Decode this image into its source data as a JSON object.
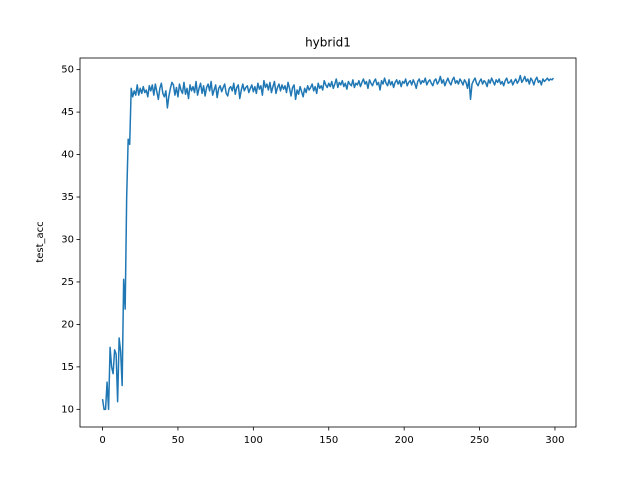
{
  "chart_data": {
    "type": "line",
    "title": "hybrid1",
    "y_label": "test_acc",
    "x": [
      0,
      1,
      2,
      3,
      4,
      5,
      6,
      7,
      8,
      9,
      10,
      11,
      12,
      13,
      14,
      15,
      16,
      17,
      18,
      19,
      20,
      21,
      22,
      23,
      24,
      25,
      26,
      27,
      28,
      29,
      30,
      31,
      32,
      33,
      34,
      35,
      36,
      37,
      38,
      39,
      40,
      41,
      42,
      43,
      44,
      45,
      46,
      47,
      48,
      49,
      50,
      51,
      52,
      53,
      54,
      55,
      56,
      57,
      58,
      59,
      60,
      61,
      62,
      63,
      64,
      65,
      66,
      67,
      68,
      69,
      70,
      71,
      72,
      73,
      74,
      75,
      76,
      77,
      78,
      79,
      80,
      81,
      82,
      83,
      84,
      85,
      86,
      87,
      88,
      89,
      90,
      91,
      92,
      93,
      94,
      95,
      96,
      97,
      98,
      99,
      100,
      101,
      102,
      103,
      104,
      105,
      106,
      107,
      108,
      109,
      110,
      111,
      112,
      113,
      114,
      115,
      116,
      117,
      118,
      119,
      120,
      121,
      122,
      123,
      124,
      125,
      126,
      127,
      128,
      129,
      130,
      131,
      132,
      133,
      134,
      135,
      136,
      137,
      138,
      139,
      140,
      141,
      142,
      143,
      144,
      145,
      146,
      147,
      148,
      149,
      150,
      151,
      152,
      153,
      154,
      155,
      156,
      157,
      158,
      159,
      160,
      161,
      162,
      163,
      164,
      165,
      166,
      167,
      168,
      169,
      170,
      171,
      172,
      173,
      174,
      175,
      176,
      177,
      178,
      179,
      180,
      181,
      182,
      183,
      184,
      185,
      186,
      187,
      188,
      189,
      190,
      191,
      192,
      193,
      194,
      195,
      196,
      197,
      198,
      199,
      200,
      201,
      202,
      203,
      204,
      205,
      206,
      207,
      208,
      209,
      210,
      211,
      212,
      213,
      214,
      215,
      216,
      217,
      218,
      219,
      220,
      221,
      222,
      223,
      224,
      225,
      226,
      227,
      228,
      229,
      230,
      231,
      232,
      233,
      234,
      235,
      236,
      237,
      238,
      239,
      240,
      241,
      242,
      243,
      244,
      245,
      246,
      247,
      248,
      249,
      250,
      251,
      252,
      253,
      254,
      255,
      256,
      257,
      258,
      259,
      260,
      261,
      262,
      263,
      264,
      265,
      266,
      267,
      268,
      269,
      270,
      271,
      272,
      273,
      274,
      275,
      276,
      277,
      278,
      279,
      280,
      281,
      282,
      283,
      284,
      285,
      286,
      287,
      288,
      289,
      290,
      291,
      292,
      293,
      294,
      295,
      296,
      297,
      298,
      299
    ],
    "series": [
      {
        "color": "#1f77b4",
        "values": [
          11.2,
          10.0,
          10.0,
          13.2,
          10.0,
          17.3,
          15.0,
          14.2,
          17.0,
          16.5,
          10.9,
          18.4,
          16.8,
          12.8,
          25.3,
          21.8,
          35.0,
          41.8,
          41.2,
          47.8,
          46.8,
          47.5,
          47.0,
          48.2,
          47.0,
          47.8,
          47.2,
          48.0,
          47.3,
          47.6,
          46.8,
          48.1,
          47.5,
          48.2,
          47.0,
          48.3,
          47.4,
          46.5,
          47.8,
          48.4,
          47.2,
          46.8,
          47.5,
          45.5,
          46.9,
          47.8,
          48.5,
          48.2,
          47.0,
          47.9,
          46.8,
          48.3,
          47.6,
          47.2,
          48.5,
          47.1,
          47.8,
          46.6,
          48.2,
          47.5,
          48.0,
          47.3,
          48.6,
          47.0,
          47.8,
          48.4,
          47.2,
          48.1,
          46.9,
          47.9,
          48.3,
          47.5,
          48.6,
          47.0,
          47.6,
          48.2,
          46.7,
          47.8,
          48.1,
          47.4,
          47.9,
          48.3,
          47.2,
          46.9,
          47.8,
          48.0,
          47.5,
          48.4,
          47.1,
          47.9,
          48.2,
          46.6,
          47.6,
          48.3,
          47.5,
          47.9,
          48.1,
          47.3,
          47.8,
          48.2,
          47.4,
          48.0,
          47.2,
          48.4,
          47.7,
          48.1,
          47.0,
          48.7,
          47.9,
          48.3,
          47.6,
          48.5,
          47.3,
          48.0,
          48.6,
          47.2,
          47.9,
          48.3,
          47.5,
          48.2,
          47.7,
          48.1,
          47.3,
          48.5,
          47.8,
          46.9,
          47.9,
          48.2,
          46.5,
          47.6,
          47.1,
          48.0,
          47.4,
          46.8,
          47.8,
          47.3,
          48.1,
          47.6,
          47.9,
          48.3,
          47.5,
          48.0,
          47.2,
          48.4,
          47.8,
          48.1,
          47.6,
          48.7,
          48.2,
          47.9,
          48.4,
          48.0,
          48.6,
          47.8,
          48.3,
          48.9,
          47.9,
          48.5,
          48.2,
          48.7,
          48.0,
          48.4,
          47.7,
          48.6,
          48.3,
          48.1,
          48.8,
          47.9,
          48.4,
          48.2,
          48.7,
          48.0,
          48.5,
          48.9,
          48.3,
          48.6,
          47.8,
          48.8,
          48.4,
          48.1,
          48.6,
          48.9,
          48.2,
          48.5,
          47.6,
          48.7,
          48.3,
          49.0,
          48.4,
          48.1,
          48.8,
          48.2,
          48.6,
          47.9,
          48.5,
          48.8,
          48.3,
          48.7,
          48.0,
          48.6,
          48.4,
          48.9,
          48.1,
          48.5,
          48.7,
          48.2,
          48.8,
          48.4,
          47.8,
          48.6,
          48.9,
          48.3,
          48.7,
          48.5,
          49.0,
          48.2,
          48.6,
          48.8,
          48.4,
          48.1,
          48.7,
          48.9,
          48.3,
          48.6,
          49.2,
          48.4,
          48.8,
          48.1,
          48.6,
          49.0,
          48.5,
          48.2,
          48.8,
          49.1,
          48.4,
          48.7,
          48.3,
          48.9,
          48.6,
          48.2,
          48.8,
          48.5,
          47.8,
          48.9,
          46.5,
          48.3,
          48.7,
          49.0,
          48.4,
          48.1,
          48.6,
          48.9,
          48.3,
          48.7,
          48.5,
          48.0,
          48.8,
          48.4,
          49.0,
          48.6,
          48.2,
          48.8,
          48.5,
          48.9,
          48.3,
          48.6,
          48.1,
          48.7,
          49.0,
          48.4,
          48.5,
          48.8,
          48.2,
          48.6,
          48.9,
          48.4,
          48.7,
          49.3,
          48.5,
          48.8,
          49.2,
          48.6,
          48.9,
          48.3,
          49.0,
          48.7,
          48.2,
          48.8,
          49.1,
          48.5,
          48.7,
          48.2,
          48.9,
          48.6,
          48.8,
          49.0,
          48.7,
          48.9,
          48.8,
          49.0
        ]
      }
    ],
    "xlim": [
      -14.95,
      313.95
    ],
    "ylim": [
      7.92,
      51.37
    ],
    "xticks": [
      0,
      50,
      100,
      150,
      200,
      250,
      300
    ],
    "yticks": [
      10,
      15,
      20,
      25,
      30,
      35,
      40,
      45,
      50
    ]
  }
}
